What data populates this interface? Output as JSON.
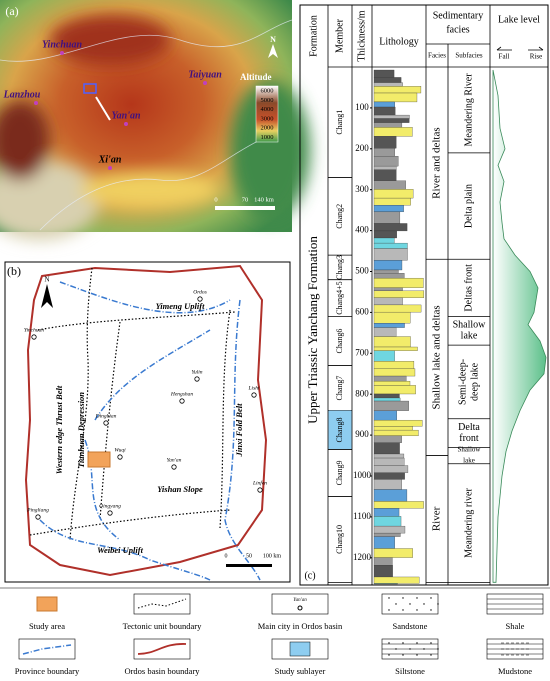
{
  "panel_a": {
    "label": "(a)",
    "cities": [
      "Yinchuan",
      "Taiyuan",
      "Lanzhou",
      "Yan'an",
      "Xi'an"
    ],
    "legend_title": "Altitude",
    "altitudes": [
      "6000",
      "5000",
      "4000",
      "3000",
      "2000",
      "1000"
    ],
    "scale": [
      "0",
      "70",
      "140 km"
    ],
    "north": "N"
  },
  "panel_b": {
    "label": "(b)",
    "north": "N",
    "scale": [
      "0",
      "50",
      "100 km"
    ],
    "cities": [
      "Ordos",
      "Yinchuan",
      "Yulin",
      "Hengshan",
      "Dingbian",
      "Wuqi",
      "Yan'an",
      "Lishi",
      "Linfen",
      "Qingyang",
      "Pingliang"
    ],
    "units": [
      "Yimeng Uplift",
      "Western edge Thrust Belt",
      "Tianhuan Depression",
      "Jinxi Fold Belt",
      "Yishan Slope",
      "Weibei Uplift"
    ]
  },
  "panel_c": {
    "label": "(c)",
    "headers": {
      "formation": "Formation",
      "member": "Member",
      "thickness": "Thickness/m",
      "lithology": "Lithology",
      "facies_group": [
        "Sedimentary",
        "facies"
      ],
      "facies": "Facies",
      "subfacies": "Subfacies",
      "lake_level": "Lake level",
      "fall": "Fall",
      "rise": "Rise"
    },
    "formation_name": "Upper Triassic Yanchang Formation",
    "thickness_ticks": [
      100,
      200,
      300,
      400,
      500,
      600,
      700,
      800,
      900,
      1000,
      1100,
      1200
    ],
    "members": [
      "Chang1",
      "Chang2",
      "Chang3",
      "Chang4+5",
      "Chang6",
      "Chang7",
      "Chang8",
      "Chang9",
      "Chang10"
    ],
    "facies": [
      "River and deltas",
      "Shallow lake and deltas",
      "River"
    ],
    "subfacies": [
      [
        "Meandering River"
      ],
      [
        "Delta plain"
      ],
      [
        "Deltas front"
      ],
      [
        "Shallow",
        "lake"
      ],
      [
        "Semi-deep-",
        "deep lake"
      ],
      [
        "Delta",
        "front"
      ],
      [
        "Shallow",
        "lake"
      ],
      [
        "Meandering river"
      ]
    ]
  },
  "legend": {
    "items": [
      "Study area",
      "Tectonic unit boundary",
      "Main city in Ordos basin",
      "Sandstone",
      "Shale",
      "Province boundary",
      "Ordos basin boundary",
      "Study sublayer",
      "Siltstone",
      "Mudstone"
    ],
    "sample_city": "Yan'an"
  }
}
